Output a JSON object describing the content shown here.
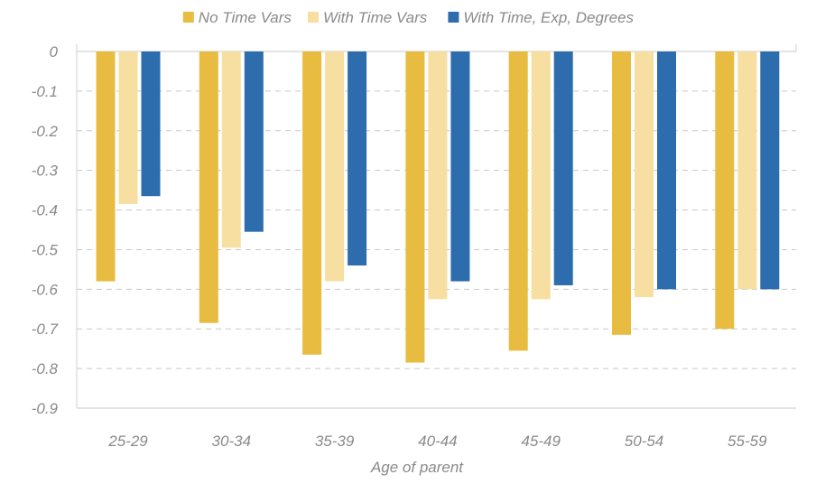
{
  "chart_data": {
    "type": "bar",
    "xlabel": "Age of parent",
    "ylabel": "",
    "ylim": [
      -0.9,
      0
    ],
    "yticks": [
      "0",
      "-0.1",
      "-0.2",
      "-0.3",
      "-0.4",
      "-0.5",
      "-0.6",
      "-0.7",
      "-0.8",
      "-0.9"
    ],
    "ytick_values": [
      0,
      -0.1,
      -0.2,
      -0.3,
      -0.4,
      -0.5,
      -0.6,
      -0.7,
      -0.8,
      -0.9
    ],
    "grid": "horizontal dashed",
    "legend_position": "top",
    "categories": [
      "25-29",
      "30-34",
      "35-39",
      "40-44",
      "45-49",
      "50-54",
      "55-59"
    ],
    "series": [
      {
        "name": "No Time Vars",
        "color": "#E8BC40",
        "values": [
          -0.58,
          -0.685,
          -0.765,
          -0.785,
          -0.755,
          -0.715,
          -0.7
        ]
      },
      {
        "name": "With Time Vars",
        "color": "#F7DFA1",
        "values": [
          -0.385,
          -0.495,
          -0.58,
          -0.625,
          -0.625,
          -0.62,
          -0.6
        ]
      },
      {
        "name": "With Time, Exp, Degrees",
        "color": "#2E6DAD",
        "values": [
          -0.365,
          -0.455,
          -0.54,
          -0.58,
          -0.59,
          -0.6,
          -0.6
        ]
      }
    ]
  }
}
